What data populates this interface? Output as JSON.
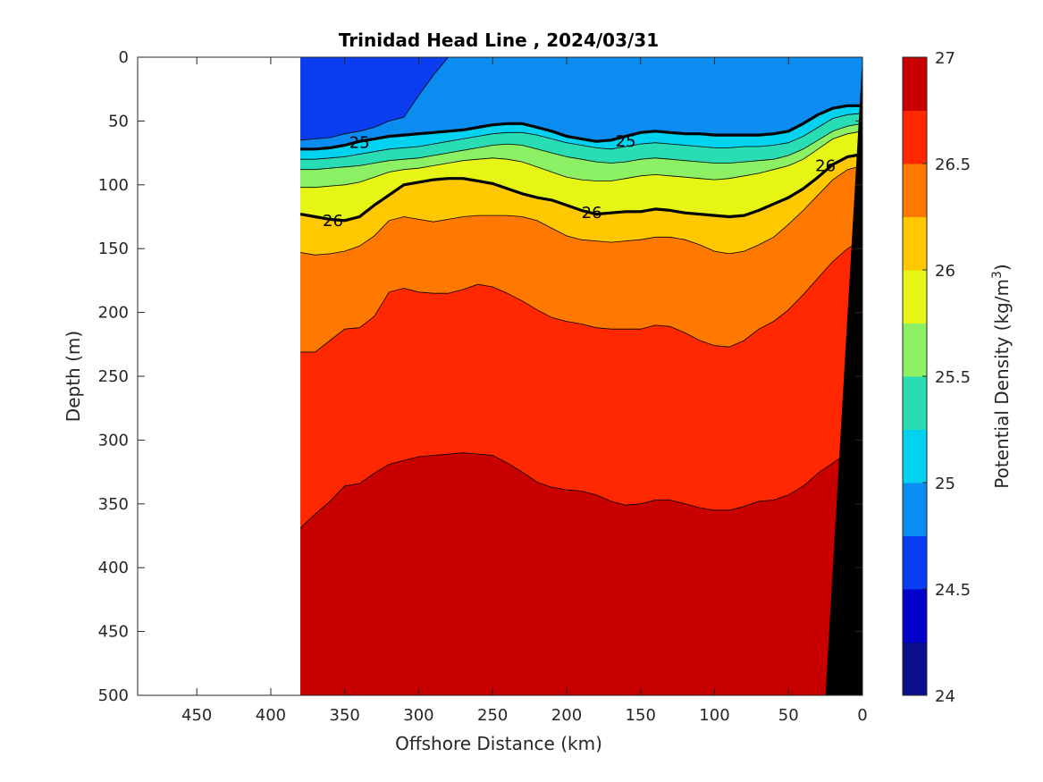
{
  "chart_data": {
    "type": "contour",
    "title": "Trinidad Head Line , 2024/03/31",
    "xlabel": "Offshore Distance (km)",
    "ylabel": "Depth (m)",
    "colorbar_label_prefix": "Potential Density (kg/m",
    "colorbar_label_exponent": "3",
    "colorbar_label_suffix": ")",
    "xlim": [
      490,
      0
    ],
    "ylim": [
      0,
      500
    ],
    "x_reversed": true,
    "y_reversed": true,
    "x_ticks": [
      450,
      400,
      350,
      300,
      250,
      200,
      150,
      100,
      50,
      0
    ],
    "y_ticks": [
      0,
      50,
      100,
      150,
      200,
      250,
      300,
      350,
      400,
      450,
      500
    ],
    "colorbar": {
      "min": 24,
      "max": 27,
      "ticks": [
        24,
        24.5,
        25,
        25.5,
        26,
        26.5,
        27
      ],
      "tick_labels": [
        "24",
        "24.5",
        "25",
        "25.5",
        "26",
        "26.5",
        "27"
      ],
      "colors": [
        "#0a0f8c",
        "#0000c8",
        "#0a3cf0",
        "#0a8cf0",
        "#00d2f0",
        "#28dcb4",
        "#8cf064",
        "#e6f514",
        "#ffc800",
        "#ff7800",
        "#ff2800",
        "#c80000"
      ]
    },
    "data_extent_x": [
      380,
      0
    ],
    "levels": [
      24.25,
      24.5,
      24.75,
      25,
      25.25,
      25.5,
      25.75,
      26,
      26.25,
      26.5,
      26.75
    ],
    "isopycnal_depths": {
      "x": [
        380,
        370,
        360,
        350,
        340,
        330,
        320,
        310,
        300,
        290,
        280,
        270,
        260,
        250,
        240,
        230,
        220,
        210,
        200,
        190,
        180,
        170,
        160,
        150,
        140,
        130,
        120,
        110,
        100,
        90,
        80,
        70,
        60,
        50,
        40,
        30,
        20,
        10,
        0
      ],
      "24.75": [
        65,
        64,
        63,
        60,
        58,
        55,
        50,
        47,
        30,
        14,
        0,
        0,
        0,
        0,
        0,
        0,
        0,
        0,
        0,
        0,
        0,
        0,
        0,
        0,
        0,
        0,
        0,
        0,
        0,
        0,
        0,
        0,
        0,
        0,
        0,
        0,
        0,
        0,
        0
      ],
      "25": [
        72,
        72,
        71,
        69,
        66,
        64,
        62,
        61,
        60,
        59,
        58,
        57,
        55,
        53,
        52,
        52,
        55,
        58,
        62,
        64,
        66,
        65,
        62,
        59,
        58,
        59,
        60,
        60,
        61,
        61,
        61,
        61,
        60,
        58,
        52,
        45,
        40,
        38,
        38
      ],
      "25.25": [
        80,
        80,
        79,
        78,
        76,
        74,
        72,
        71,
        70,
        68,
        66,
        64,
        62,
        60,
        59,
        59,
        61,
        64,
        67,
        69,
        71,
        72,
        70,
        68,
        67,
        68,
        69,
        70,
        71,
        71,
        70,
        70,
        69,
        67,
        62,
        55,
        48,
        45,
        44
      ],
      "25.5": [
        88,
        88,
        87,
        86,
        85,
        83,
        81,
        80,
        79,
        77,
        75,
        73,
        71,
        69,
        68,
        69,
        72,
        75,
        78,
        80,
        82,
        83,
        82,
        80,
        79,
        80,
        81,
        82,
        83,
        83,
        82,
        81,
        80,
        77,
        72,
        65,
        58,
        54,
        52
      ],
      "25.75": [
        102,
        102,
        101,
        100,
        98,
        94,
        90,
        88,
        87,
        85,
        83,
        81,
        80,
        79,
        80,
        82,
        86,
        90,
        94,
        96,
        97,
        97,
        95,
        93,
        92,
        93,
        94,
        95,
        96,
        95,
        93,
        91,
        88,
        85,
        80,
        72,
        64,
        60,
        58
      ],
      "26": [
        123,
        125,
        127,
        128,
        125,
        116,
        108,
        100,
        98,
        96,
        95,
        95,
        97,
        99,
        103,
        107,
        110,
        112,
        116,
        120,
        123,
        122,
        121,
        121,
        119,
        120,
        122,
        123,
        124,
        125,
        124,
        120,
        115,
        110,
        103,
        94,
        84,
        78,
        76
      ],
      "26.25": [
        153,
        155,
        154,
        152,
        148,
        140,
        128,
        125,
        127,
        129,
        127,
        125,
        124,
        124,
        124,
        125,
        128,
        134,
        140,
        143,
        144,
        145,
        144,
        143,
        141,
        141,
        143,
        147,
        152,
        154,
        152,
        147,
        141,
        131,
        120,
        108,
        96,
        88,
        85
      ],
      "26.5": [
        231,
        231,
        222,
        213,
        212,
        203,
        184,
        181,
        184,
        185,
        185,
        182,
        178,
        180,
        185,
        191,
        198,
        204,
        207,
        209,
        212,
        213,
        213,
        213,
        210,
        211,
        216,
        222,
        226,
        227,
        222,
        213,
        207,
        198,
        186,
        173,
        160,
        150,
        143
      ],
      "26.75": [
        369,
        358,
        348,
        336,
        334,
        326,
        319,
        316,
        313,
        312,
        311,
        310,
        311,
        312,
        318,
        325,
        333,
        337,
        339,
        340,
        343,
        348,
        351,
        350,
        347,
        347,
        350,
        353,
        355,
        355,
        352,
        348,
        347,
        343,
        336,
        326,
        318,
        310,
        305
      ]
    },
    "bold_contour_labels": [
      {
        "text": "25",
        "x": 340,
        "y": 67
      },
      {
        "text": "25",
        "x": 160,
        "y": 66
      },
      {
        "text": "26",
        "x": 358,
        "y": 128
      },
      {
        "text": "26",
        "x": 183,
        "y": 122
      },
      {
        "text": "26",
        "x": 25,
        "y": 85
      }
    ],
    "bathymetry": {
      "bottom_x_at_500m": 25,
      "top_x_at_0m": 0
    },
    "grid": false,
    "legend": "colorbar-right"
  }
}
